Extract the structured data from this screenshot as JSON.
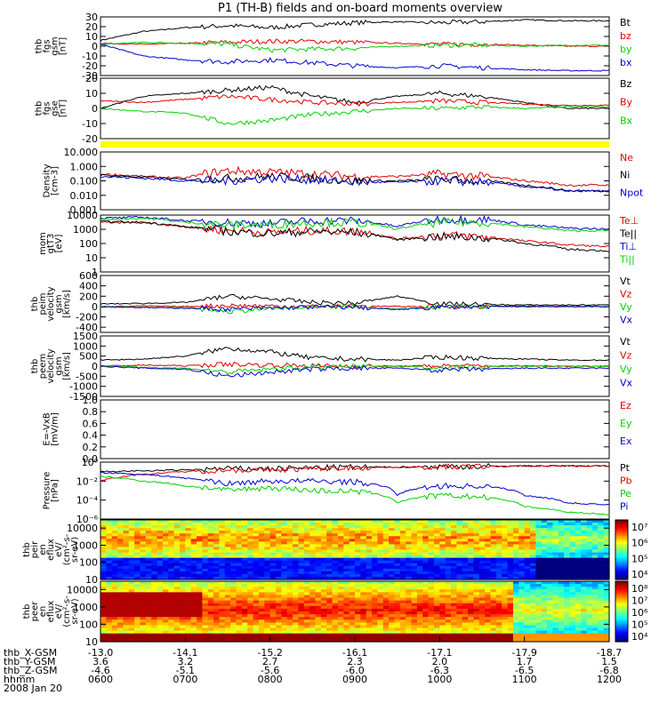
{
  "title": "P1 (TH-B) fields and on-board moments overview",
  "date_label": "2008 Jan 20",
  "colors": {
    "black": "#000000",
    "red": "#e00000",
    "green": "#00d000",
    "blue": "#0000d0",
    "yellow": "#ffff00",
    "frame": "#000000"
  },
  "chart_data": [
    {
      "type": "line",
      "panel": "fgs-gsm",
      "ylabel": [
        "thb",
        "fgs",
        "gsm",
        "[nT]"
      ],
      "ylim": [
        -30,
        30
      ],
      "yticks": [
        "30",
        "20",
        "10",
        "0",
        "-10",
        "-20",
        "-30"
      ],
      "tick_values": [
        30,
        20,
        10,
        0,
        -10,
        -20,
        -30
      ],
      "x": [
        0,
        0.5,
        1,
        1.5,
        2,
        2.5,
        3,
        3.5,
        4,
        4.5,
        5,
        5.5,
        6
      ],
      "series": [
        {
          "name": "Bt",
          "color": "#000000",
          "values": [
            6,
            15,
            19,
            21,
            19,
            22,
            24,
            25,
            24,
            25,
            27,
            26,
            26
          ]
        },
        {
          "name": "bz",
          "color": "#e00000",
          "values": [
            3,
            2,
            3,
            4,
            5,
            5,
            4,
            3,
            2,
            2,
            1,
            0,
            0
          ]
        },
        {
          "name": "by",
          "color": "#00d000",
          "values": [
            2,
            4,
            3,
            2,
            -4,
            -3,
            -2,
            0,
            1,
            1,
            0,
            1,
            1
          ]
        },
        {
          "name": "bx",
          "color": "#0000d0",
          "values": [
            2,
            -10,
            -14,
            -16,
            -14,
            -17,
            -20,
            -22,
            -20,
            -22,
            -24,
            -25,
            -25
          ]
        }
      ]
    },
    {
      "type": "line",
      "panel": "fgs-gse",
      "ylabel": [
        "thb",
        "fgs",
        "gse",
        "[nT]"
      ],
      "ylim": [
        -20,
        20
      ],
      "yticks": [
        "20",
        "10",
        "0",
        "-10",
        "-20"
      ],
      "tick_values": [
        20,
        10,
        0,
        -10,
        -20
      ],
      "x": [
        0,
        0.5,
        1,
        1.5,
        2,
        2.5,
        3,
        3.5,
        4,
        4.5,
        5,
        5.5,
        6
      ],
      "series": [
        {
          "name": "Bz",
          "color": "#000000",
          "values": [
            0,
            8,
            10,
            12,
            14,
            8,
            4,
            8,
            10,
            8,
            4,
            0,
            0
          ]
        },
        {
          "name": "By",
          "color": "#e00000",
          "values": [
            5,
            4,
            6,
            8,
            6,
            4,
            3,
            4,
            5,
            4,
            3,
            2,
            2
          ]
        },
        {
          "name": "Bx",
          "color": "#00d000",
          "values": [
            0,
            -2,
            -3,
            -10,
            -8,
            -4,
            -2,
            0,
            0,
            1,
            0,
            1,
            1
          ]
        }
      ]
    },
    {
      "type": "line",
      "panel": "density",
      "ylabel": [
        "Density",
        "[cm-3]"
      ],
      "scale": "log",
      "ylim": [
        0.001,
        10
      ],
      "yticks": [
        "10.000",
        "1.000",
        "0.100",
        "0.010",
        "0.001"
      ],
      "tick_values": [
        10,
        1,
        0.1,
        0.01,
        0.001
      ],
      "x": [
        0,
        0.5,
        1,
        1.5,
        2,
        2.5,
        3,
        3.5,
        4,
        4.5,
        5,
        5.5,
        6
      ],
      "series": [
        {
          "name": "Ne",
          "color": "#e00000",
          "values": [
            0.3,
            0.2,
            0.15,
            0.5,
            0.4,
            0.3,
            0.2,
            0.2,
            0.3,
            0.2,
            0.1,
            0.05,
            0.05
          ]
        },
        {
          "name": "Ni",
          "color": "#000000",
          "values": [
            0.25,
            0.18,
            0.12,
            0.15,
            0.2,
            0.15,
            0.1,
            0.1,
            0.12,
            0.1,
            0.05,
            0.02,
            0.02
          ]
        },
        {
          "name": "Npot",
          "color": "#0000d0",
          "values": [
            0.2,
            0.15,
            0.1,
            0.1,
            0.15,
            0.12,
            0.08,
            0.08,
            0.1,
            0.08,
            0.04,
            0.02,
            0.02
          ]
        }
      ]
    },
    {
      "type": "line",
      "panel": "mom-temp",
      "ylabel": [
        "mom",
        "gtT3",
        "[eV]"
      ],
      "scale": "log",
      "ylim": [
        1,
        10000
      ],
      "yticks": [
        "10000",
        "1000",
        "100",
        "10",
        "1"
      ],
      "tick_values": [
        10000,
        1000,
        100,
        10,
        1
      ],
      "x": [
        0,
        0.5,
        1,
        1.5,
        2,
        2.5,
        3,
        3.5,
        4,
        4.5,
        5,
        5.5,
        6
      ],
      "series": [
        {
          "name": "Te⊥",
          "color": "#e00000",
          "values": [
            3000,
            3000,
            1500,
            800,
            600,
            800,
            700,
            200,
            400,
            300,
            150,
            80,
            60
          ]
        },
        {
          "name": "Te||",
          "color": "#000000",
          "values": [
            3500,
            3000,
            1500,
            700,
            500,
            700,
            600,
            180,
            300,
            250,
            100,
            40,
            30
          ]
        },
        {
          "name": "Ti⊥",
          "color": "#0000d0",
          "values": [
            6000,
            7000,
            4000,
            3000,
            2500,
            4000,
            4000,
            1500,
            5000,
            5000,
            2000,
            1200,
            1000
          ]
        },
        {
          "name": "Ti||",
          "color": "#00d000",
          "values": [
            5000,
            6000,
            3000,
            2000,
            2000,
            3000,
            3000,
            1000,
            3000,
            3000,
            1500,
            800,
            800
          ]
        }
      ]
    },
    {
      "type": "line",
      "panel": "peim-velocity",
      "ylabel": [
        "thb",
        "peim",
        "velocity",
        "gsm",
        "[km/s]"
      ],
      "ylim": [
        -500,
        600
      ],
      "yticks": [
        "600",
        "400",
        "200",
        "0",
        "-200",
        "-400"
      ],
      "tick_values": [
        600,
        400,
        200,
        0,
        -200,
        -400
      ],
      "x": [
        0,
        0.5,
        1,
        1.5,
        2,
        2.5,
        3,
        3.5,
        4,
        4.5,
        5,
        5.5,
        6
      ],
      "series": [
        {
          "name": "Vt",
          "color": "#000000",
          "values": [
            50,
            60,
            80,
            200,
            150,
            80,
            60,
            200,
            50,
            40,
            30,
            30,
            30
          ]
        },
        {
          "name": "Vz",
          "color": "#e00000",
          "values": [
            0,
            10,
            0,
            20,
            10,
            0,
            10,
            0,
            0,
            0,
            10,
            0,
            0
          ]
        },
        {
          "name": "Vy",
          "color": "#00d000",
          "values": [
            0,
            -10,
            -20,
            -100,
            -40,
            -20,
            0,
            -50,
            0,
            0,
            0,
            0,
            0
          ]
        },
        {
          "name": "Vx",
          "color": "#0000d0",
          "values": [
            0,
            -20,
            -30,
            -50,
            -30,
            -10,
            -10,
            -60,
            -10,
            0,
            0,
            0,
            0
          ]
        }
      ]
    },
    {
      "type": "line",
      "panel": "peem-velocity",
      "ylabel": [
        "thb",
        "peem",
        "velocity",
        "gsm",
        "[km/s]"
      ],
      "ylim": [
        -1500,
        1500
      ],
      "yticks": [
        "1500",
        "1000",
        "500",
        "0",
        "-500",
        "-1000",
        "-1500"
      ],
      "tick_values": [
        1500,
        1000,
        500,
        0,
        -500,
        -1000,
        -1500
      ],
      "x": [
        0,
        0.5,
        1,
        1.5,
        2,
        2.5,
        3,
        3.5,
        4,
        4.5,
        5,
        5.5,
        6
      ],
      "series": [
        {
          "name": "Vt",
          "color": "#000000",
          "values": [
            300,
            350,
            500,
            900,
            700,
            400,
            350,
            300,
            450,
            400,
            350,
            300,
            300
          ]
        },
        {
          "name": "Vz",
          "color": "#e00000",
          "values": [
            0,
            50,
            20,
            100,
            50,
            20,
            0,
            0,
            20,
            0,
            20,
            0,
            0
          ]
        },
        {
          "name": "Vy",
          "color": "#00d000",
          "values": [
            0,
            -50,
            -100,
            -300,
            -150,
            -50,
            -20,
            0,
            -50,
            -20,
            0,
            0,
            0
          ]
        },
        {
          "name": "Vx",
          "color": "#0000d0",
          "values": [
            0,
            -100,
            -150,
            -500,
            -300,
            -150,
            -100,
            -100,
            -200,
            -150,
            -100,
            -100,
            -100
          ]
        }
      ]
    },
    {
      "type": "line",
      "panel": "efield",
      "ylabel": [
        "E=-VxB",
        "[mV/m]"
      ],
      "ylim": [
        0,
        1
      ],
      "yticks": [
        "1.0",
        "0.8",
        "0.6",
        "0.4",
        "0.2",
        "0.0"
      ],
      "tick_values": [
        1,
        0.8,
        0.6,
        0.4,
        0.2,
        0
      ],
      "series": [
        {
          "name": "Ez",
          "color": "#e00000",
          "values": []
        },
        {
          "name": "Ey",
          "color": "#00d000",
          "values": []
        },
        {
          "name": "Ex",
          "color": "#0000d0",
          "values": []
        }
      ]
    },
    {
      "type": "line",
      "panel": "pressure",
      "ylabel": [
        "Pressure",
        "[nPa]"
      ],
      "scale": "log",
      "ylim": [
        1e-06,
        1
      ],
      "yticks": [
        "10⁰",
        "10⁻²",
        "10⁻⁴",
        "10⁻⁶"
      ],
      "tick_values": [
        1,
        0.01,
        0.0001,
        1e-06
      ],
      "x": [
        0,
        0.5,
        1,
        1.5,
        2,
        2.5,
        3,
        3.5,
        4,
        4.5,
        5,
        5.5,
        6
      ],
      "series": [
        {
          "name": "Pt",
          "color": "#000000",
          "values": [
            0.1,
            0.12,
            0.15,
            0.2,
            0.2,
            0.25,
            0.3,
            0.3,
            0.35,
            0.35,
            0.4,
            0.4,
            0.4
          ]
        },
        {
          "name": "Pb",
          "color": "#e00000",
          "values": [
            0.01,
            0.05,
            0.1,
            0.15,
            0.15,
            0.2,
            0.25,
            0.3,
            0.3,
            0.35,
            0.4,
            0.4,
            0.4
          ]
        },
        {
          "name": "Pe",
          "color": "#00d000",
          "values": [
            0.03,
            0.01,
            0.003,
            0.001,
            0.002,
            0.001,
            0.0008,
            5e-05,
            0.0003,
            0.0002,
            2e-05,
            5e-06,
            3e-06
          ]
        },
        {
          "name": "Pi",
          "color": "#0000d0",
          "values": [
            0.08,
            0.05,
            0.02,
            0.005,
            0.01,
            0.01,
            0.008,
            0.0003,
            0.003,
            0.003,
            0.0003,
            5e-05,
            3e-05
          ]
        }
      ]
    },
    {
      "type": "heatmap",
      "panel": "peir-spectrogram",
      "ylabel": [
        "thb",
        "peir",
        "en",
        "eflux",
        "eV/",
        "(cm²-s-",
        "sr-eV)"
      ],
      "scale": "log",
      "ylim": [
        10,
        30000
      ],
      "yticks": [
        "10000",
        "1000",
        "100",
        "10"
      ],
      "tick_values": [
        10000,
        1000,
        100,
        10
      ],
      "colorbar_ticks": [
        "10⁷",
        "10⁶",
        "10⁵",
        "10⁴"
      ]
    },
    {
      "type": "heatmap",
      "panel": "peer-spectrogram",
      "ylabel": [
        "thb",
        "peer",
        "en",
        "eflux",
        "eV/",
        "(cm²-s-",
        "sr-eV)"
      ],
      "scale": "log",
      "ylim": [
        10,
        30000
      ],
      "yticks": [
        "10000",
        "1000",
        "100",
        "10"
      ],
      "tick_values": [
        10000,
        1000,
        100,
        10
      ],
      "colorbar_ticks": [
        "10⁸",
        "10⁷",
        "10⁶",
        "10⁵",
        "10⁴"
      ]
    }
  ],
  "x_axis": {
    "rows": [
      {
        "label": "thb_X-GSM",
        "values": [
          "-13.0",
          "-14.1",
          "-15.2",
          "-16.1",
          "-17.1",
          "-17.9",
          "-18.7"
        ]
      },
      {
        "label": "thb_Y-GSM",
        "values": [
          "3.6",
          "3.2",
          "2.7",
          "2.3",
          "2.0",
          "1.7",
          "1.5"
        ]
      },
      {
        "label": "thb_Z-GSM",
        "values": [
          "-4.6",
          "-5.1",
          "-5.6",
          "-6.0",
          "-6.3",
          "-6.5",
          "-6.8"
        ]
      },
      {
        "label": "hhmm",
        "values": [
          "0600",
          "0700",
          "0800",
          "0900",
          "1000",
          "1100",
          "1200"
        ]
      }
    ]
  }
}
